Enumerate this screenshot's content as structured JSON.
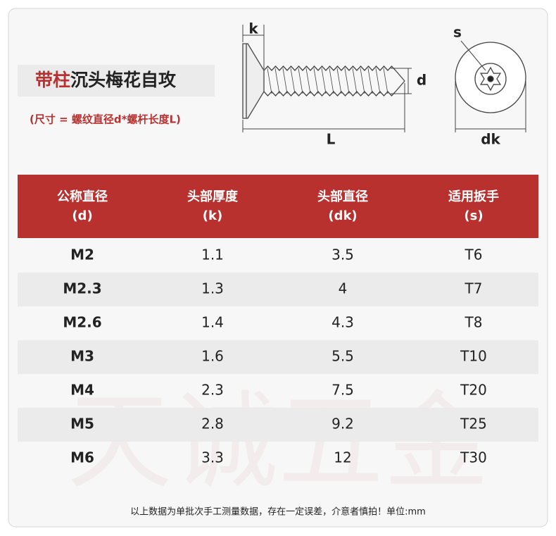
{
  "title": {
    "highlight": "带柱",
    "rest": "沉头梅花自攻"
  },
  "subtitle": "(尺寸 = 螺纹直径d*螺杆长度L)",
  "diagram": {
    "k": "k",
    "d": "d",
    "L": "L",
    "s": "s",
    "dk": "dk"
  },
  "watermark": "天诚五金",
  "table": {
    "header": [
      [
        "公称直径",
        "(d)"
      ],
      [
        "头部厚度",
        "(k)"
      ],
      [
        "头部直径",
        "(dk)"
      ],
      [
        "适用扳手",
        "(s)"
      ]
    ],
    "rows": [
      [
        "M2",
        "1.1",
        "3.5",
        "T6"
      ],
      [
        "M2.3",
        "1.3",
        "4",
        "T7"
      ],
      [
        "M2.6",
        "1.4",
        "4.3",
        "T8"
      ],
      [
        "M3",
        "1.6",
        "5.5",
        "T10"
      ],
      [
        "M4",
        "2.3",
        "7.5",
        "T20"
      ],
      [
        "M5",
        "2.8",
        "9.2",
        "T25"
      ],
      [
        "M6",
        "3.3",
        "12",
        "T30"
      ]
    ]
  },
  "footer": "以上数据为单批次手工测量数据，存在一定误差，介意者慎拍！单位:mm"
}
